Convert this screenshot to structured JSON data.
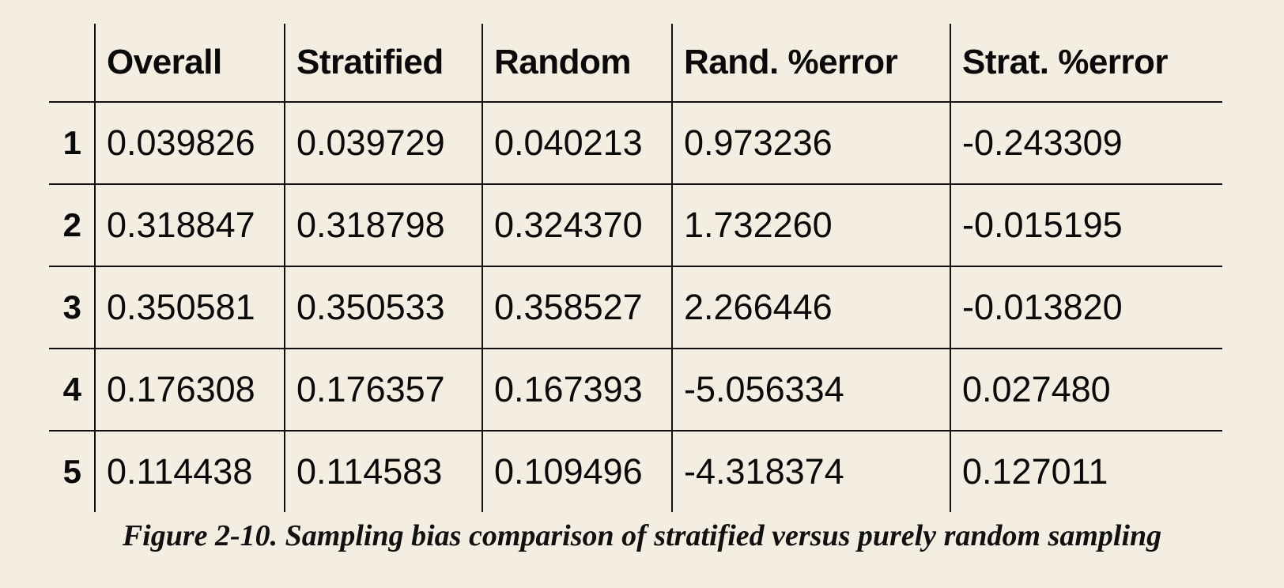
{
  "table": {
    "columns": [
      "",
      "Overall",
      "Stratified",
      "Random",
      "Rand. %error",
      "Strat. %error"
    ],
    "rows": [
      {
        "index": "1",
        "cells": [
          "0.039826",
          "0.039729",
          "0.040213",
          "0.973236",
          "-0.243309"
        ]
      },
      {
        "index": "2",
        "cells": [
          "0.318847",
          "0.318798",
          "0.324370",
          "1.732260",
          "-0.015195"
        ]
      },
      {
        "index": "3",
        "cells": [
          "0.350581",
          "0.350533",
          "0.358527",
          "2.266446",
          "-0.013820"
        ]
      },
      {
        "index": "4",
        "cells": [
          "0.176308",
          "0.176357",
          "0.167393",
          "-5.056334",
          "0.027480"
        ]
      },
      {
        "index": "5",
        "cells": [
          "0.114438",
          "0.114583",
          "0.109496",
          "-4.318374",
          "0.127011"
        ]
      }
    ]
  },
  "caption": "Figure 2-10. Sampling bias comparison of stratified versus purely random sampling"
}
